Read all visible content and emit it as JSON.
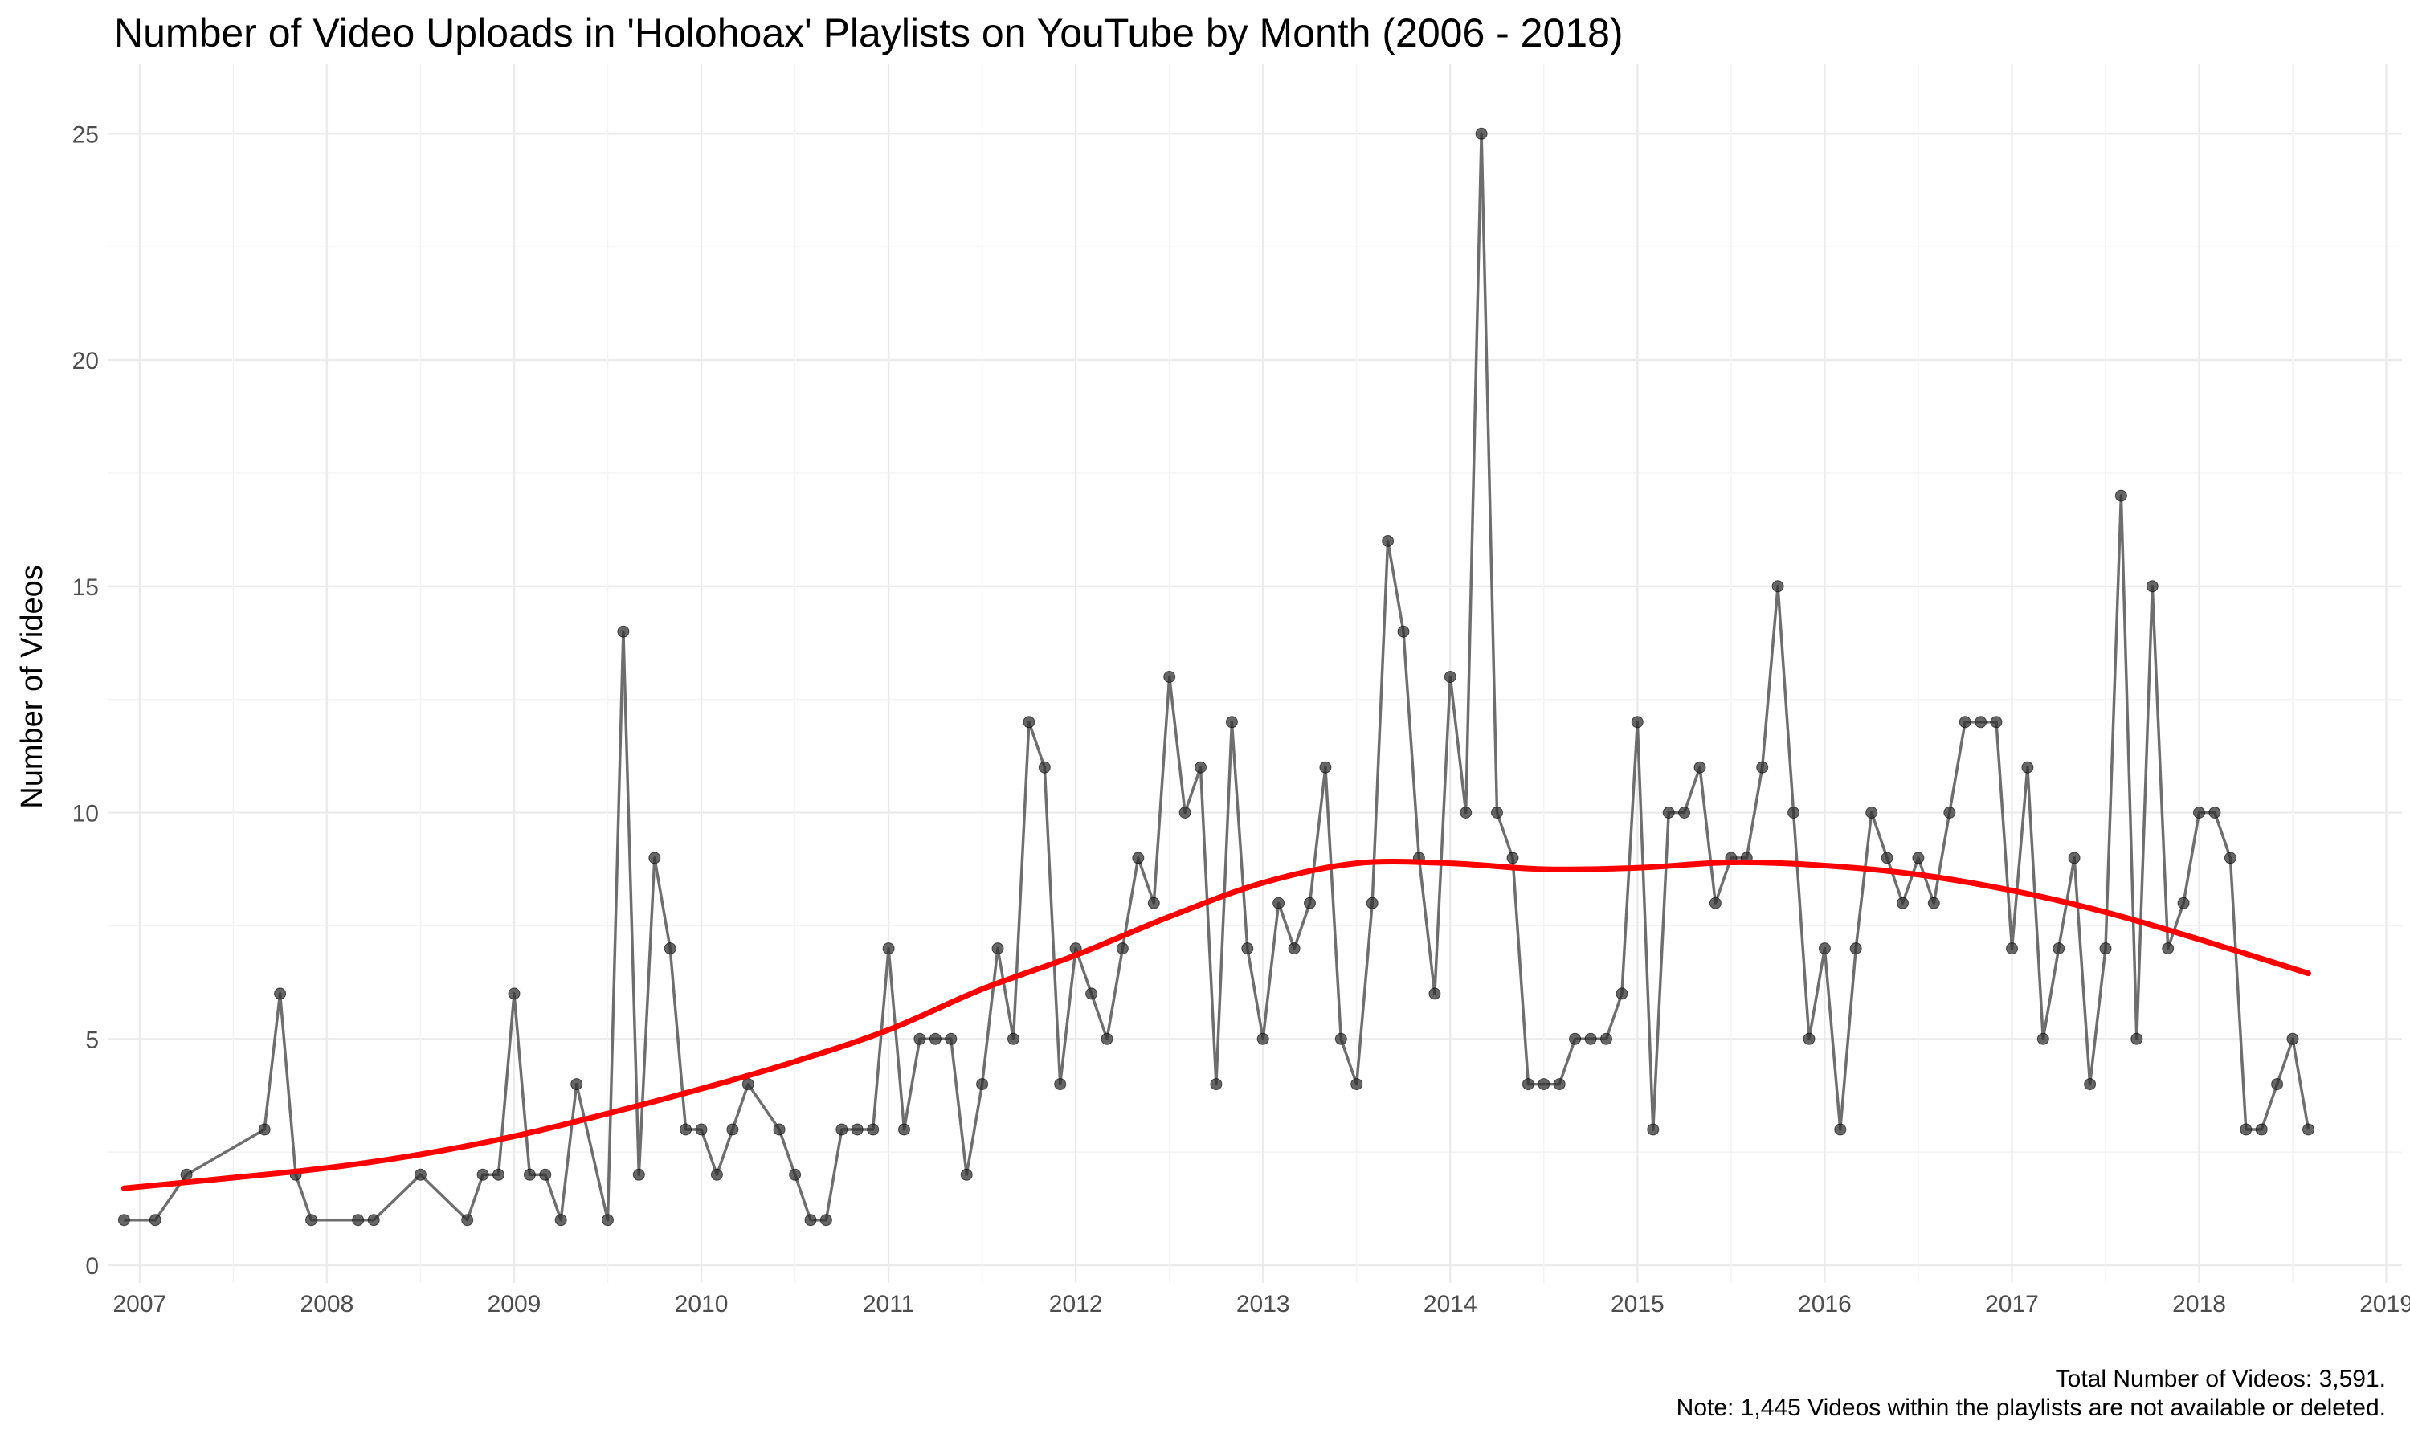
{
  "chart_data": {
    "type": "line",
    "title": "Number of Video Uploads in 'Holohoax' Playlists on YouTube by Month (2006 - 2018)",
    "xlabel": "",
    "ylabel": "Number of Videos",
    "x_ticks": [
      "2007",
      "2008",
      "2009",
      "2010",
      "2011",
      "2012",
      "2013",
      "2014",
      "2015",
      "2016",
      "2017",
      "2018",
      "2019"
    ],
    "y_ticks": [
      0,
      5,
      10,
      15,
      20,
      25
    ],
    "xlim": [
      "2006-11",
      "2019-02"
    ],
    "ylim": [
      0,
      26
    ],
    "grid": true,
    "series": [
      {
        "style": "line+points",
        "color": "#555555",
        "points": [
          [
            "2006-12",
            1
          ],
          [
            "2007-02",
            1
          ],
          [
            "2007-04",
            2
          ],
          [
            "2007-09",
            3
          ],
          [
            "2007-10",
            6
          ],
          [
            "2007-11",
            2
          ],
          [
            "2007-12",
            1
          ],
          [
            "2008-03",
            1
          ],
          [
            "2008-04",
            1
          ],
          [
            "2008-07",
            2
          ],
          [
            "2008-10",
            1
          ],
          [
            "2008-11",
            2
          ],
          [
            "2008-12",
            2
          ],
          [
            "2009-01",
            6
          ],
          [
            "2009-02",
            2
          ],
          [
            "2009-03",
            2
          ],
          [
            "2009-04",
            1
          ],
          [
            "2009-05",
            4
          ],
          [
            "2009-07",
            1
          ],
          [
            "2009-08",
            14
          ],
          [
            "2009-09",
            2
          ],
          [
            "2009-10",
            9
          ],
          [
            "2009-11",
            7
          ],
          [
            "2009-12",
            3
          ],
          [
            "2010-01",
            3
          ],
          [
            "2010-02",
            2
          ],
          [
            "2010-03",
            3
          ],
          [
            "2010-04",
            4
          ],
          [
            "2010-06",
            3
          ],
          [
            "2010-07",
            2
          ],
          [
            "2010-08",
            1
          ],
          [
            "2010-09",
            1
          ],
          [
            "2010-10",
            3
          ],
          [
            "2010-11",
            3
          ],
          [
            "2010-12",
            3
          ],
          [
            "2011-01",
            7
          ],
          [
            "2011-02",
            3
          ],
          [
            "2011-03",
            5
          ],
          [
            "2011-04",
            5
          ],
          [
            "2011-05",
            5
          ],
          [
            "2011-06",
            2
          ],
          [
            "2011-07",
            4
          ],
          [
            "2011-08",
            7
          ],
          [
            "2011-09",
            5
          ],
          [
            "2011-10",
            12
          ],
          [
            "2011-11",
            11
          ],
          [
            "2011-12",
            4
          ],
          [
            "2012-01",
            7
          ],
          [
            "2012-02",
            6
          ],
          [
            "2012-03",
            5
          ],
          [
            "2012-04",
            7
          ],
          [
            "2012-05",
            9
          ],
          [
            "2012-06",
            8
          ],
          [
            "2012-07",
            13
          ],
          [
            "2012-08",
            10
          ],
          [
            "2012-09",
            11
          ],
          [
            "2012-10",
            4
          ],
          [
            "2012-11",
            12
          ],
          [
            "2012-12",
            7
          ],
          [
            "2013-01",
            5
          ],
          [
            "2013-02",
            8
          ],
          [
            "2013-03",
            7
          ],
          [
            "2013-04",
            8
          ],
          [
            "2013-05",
            11
          ],
          [
            "2013-06",
            5
          ],
          [
            "2013-07",
            4
          ],
          [
            "2013-08",
            8
          ],
          [
            "2013-09",
            16
          ],
          [
            "2013-10",
            14
          ],
          [
            "2013-11",
            9
          ],
          [
            "2013-12",
            6
          ],
          [
            "2014-01",
            13
          ],
          [
            "2014-02",
            10
          ],
          [
            "2014-03",
            25
          ],
          [
            "2014-04",
            10
          ],
          [
            "2014-05",
            9
          ],
          [
            "2014-06",
            4
          ],
          [
            "2014-07",
            4
          ],
          [
            "2014-08",
            4
          ],
          [
            "2014-09",
            5
          ],
          [
            "2014-10",
            5
          ],
          [
            "2014-11",
            5
          ],
          [
            "2014-12",
            6
          ],
          [
            "2015-01",
            12
          ],
          [
            "2015-02",
            3
          ],
          [
            "2015-03",
            10
          ],
          [
            "2015-04",
            10
          ],
          [
            "2015-05",
            11
          ],
          [
            "2015-06",
            8
          ],
          [
            "2015-07",
            9
          ],
          [
            "2015-08",
            9
          ],
          [
            "2015-09",
            11
          ],
          [
            "2015-10",
            15
          ],
          [
            "2015-11",
            10
          ],
          [
            "2015-12",
            5
          ],
          [
            "2016-01",
            7
          ],
          [
            "2016-02",
            3
          ],
          [
            "2016-03",
            7
          ],
          [
            "2016-04",
            10
          ],
          [
            "2016-05",
            9
          ],
          [
            "2016-06",
            8
          ],
          [
            "2016-07",
            9
          ],
          [
            "2016-08",
            8
          ],
          [
            "2016-09",
            10
          ],
          [
            "2016-10",
            12
          ],
          [
            "2016-11",
            12
          ],
          [
            "2016-12",
            12
          ],
          [
            "2017-01",
            7
          ],
          [
            "2017-02",
            11
          ],
          [
            "2017-03",
            5
          ],
          [
            "2017-04",
            7
          ],
          [
            "2017-05",
            9
          ],
          [
            "2017-06",
            4
          ],
          [
            "2017-07",
            7
          ],
          [
            "2017-08",
            17
          ],
          [
            "2017-09",
            5
          ],
          [
            "2017-10",
            15
          ],
          [
            "2017-11",
            7
          ],
          [
            "2017-12",
            8
          ],
          [
            "2018-01",
            10
          ],
          [
            "2018-02",
            10
          ],
          [
            "2018-03",
            9
          ],
          [
            "2018-04",
            3
          ],
          [
            "2018-05",
            3
          ],
          [
            "2018-06",
            4
          ],
          [
            "2018-07",
            5
          ],
          [
            "2018-08",
            3
          ]
        ]
      },
      {
        "style": "smooth-trend",
        "color": "#ff0000",
        "points": [
          [
            "2006-12",
            1.7
          ],
          [
            "2007-06",
            1.9
          ],
          [
            "2008-01",
            2.15
          ],
          [
            "2008-07",
            2.45
          ],
          [
            "2009-01",
            2.85
          ],
          [
            "2009-07",
            3.35
          ],
          [
            "2010-01",
            3.9
          ],
          [
            "2010-07",
            4.5
          ],
          [
            "2011-01",
            5.2
          ],
          [
            "2011-07",
            6.1
          ],
          [
            "2012-01",
            6.85
          ],
          [
            "2012-07",
            7.7
          ],
          [
            "2013-01",
            8.45
          ],
          [
            "2013-07",
            8.88
          ],
          [
            "2014-01",
            8.88
          ],
          [
            "2014-07",
            8.75
          ],
          [
            "2015-01",
            8.78
          ],
          [
            "2015-07",
            8.9
          ],
          [
            "2016-01",
            8.83
          ],
          [
            "2016-07",
            8.63
          ],
          [
            "2017-01",
            8.28
          ],
          [
            "2017-07",
            7.8
          ],
          [
            "2018-01",
            7.2
          ],
          [
            "2018-08",
            6.45
          ]
        ]
      }
    ]
  },
  "caption": {
    "line1": "Total Number of Videos: 3,591.",
    "line2": "Note: 1,445 Videos within the playlists are not available or deleted."
  }
}
